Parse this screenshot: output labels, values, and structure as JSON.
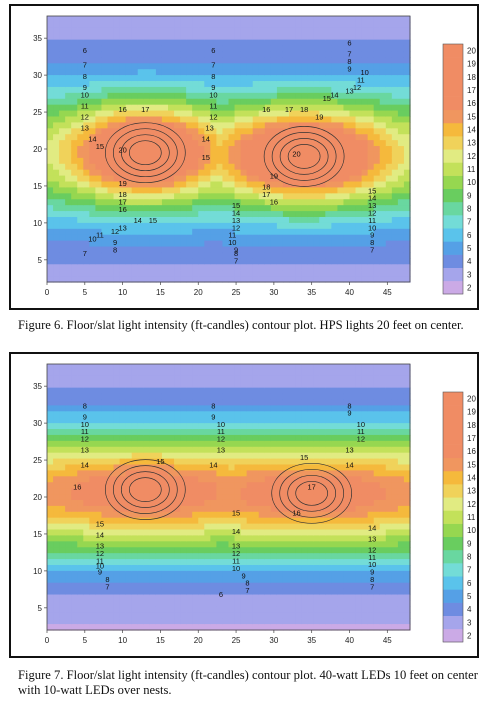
{
  "figures": [
    {
      "caption": "Figure 6.  Floor/slat light intensity (ft-candles) contour plot.  HPS lights 20 feet on center.",
      "chart_data": {
        "type": "heatmap",
        "title": "",
        "xlabel": "",
        "ylabel": "",
        "xlim": [
          0,
          48
        ],
        "ylim": [
          2,
          38
        ],
        "xticks": [
          0,
          5,
          10,
          15,
          20,
          25,
          30,
          35,
          40,
          45
        ],
        "yticks": [
          5,
          10,
          15,
          20,
          25,
          30,
          35
        ],
        "colorbar_ticks": [
          2,
          3,
          4,
          5,
          6,
          7,
          8,
          9,
          10,
          11,
          12,
          13,
          14,
          15,
          16,
          17,
          18,
          19,
          20
        ],
        "value_range": [
          2,
          20
        ],
        "peaks": [
          {
            "x": 13,
            "y": 19.5,
            "value": 20
          },
          {
            "x": 34,
            "y": 19,
            "value": 20
          }
        ],
        "contour_labels": [
          {
            "x": 5,
            "y": 33,
            "text": "6"
          },
          {
            "x": 5,
            "y": 31,
            "text": "7"
          },
          {
            "x": 5,
            "y": 29.5,
            "text": "8"
          },
          {
            "x": 5,
            "y": 28,
            "text": "9"
          },
          {
            "x": 5,
            "y": 27,
            "text": "10"
          },
          {
            "x": 5,
            "y": 25.5,
            "text": "11"
          },
          {
            "x": 5,
            "y": 24,
            "text": "12"
          },
          {
            "x": 5,
            "y": 22.5,
            "text": "13"
          },
          {
            "x": 6,
            "y": 21,
            "text": "14"
          },
          {
            "x": 7,
            "y": 20,
            "text": "15"
          },
          {
            "x": 10,
            "y": 25,
            "text": "16"
          },
          {
            "x": 13,
            "y": 25,
            "text": "17"
          },
          {
            "x": 10,
            "y": 19.5,
            "text": "20"
          },
          {
            "x": 10,
            "y": 15,
            "text": "19"
          },
          {
            "x": 10,
            "y": 13.5,
            "text": "18"
          },
          {
            "x": 10,
            "y": 12.5,
            "text": "17"
          },
          {
            "x": 10,
            "y": 11.5,
            "text": "16"
          },
          {
            "x": 12,
            "y": 10,
            "text": "14"
          },
          {
            "x": 14,
            "y": 10,
            "text": "15"
          },
          {
            "x": 10,
            "y": 9,
            "text": "13"
          },
          {
            "x": 9,
            "y": 8.5,
            "text": "12"
          },
          {
            "x": 7,
            "y": 8,
            "text": "11"
          },
          {
            "x": 6,
            "y": 7.5,
            "text": "10"
          },
          {
            "x": 9,
            "y": 7,
            "text": "9"
          },
          {
            "x": 9,
            "y": 6,
            "text": "8"
          },
          {
            "x": 5,
            "y": 5.5,
            "text": "7"
          },
          {
            "x": 22,
            "y": 33,
            "text": "6"
          },
          {
            "x": 22,
            "y": 31,
            "text": "7"
          },
          {
            "x": 22,
            "y": 29.5,
            "text": "8"
          },
          {
            "x": 22,
            "y": 28,
            "text": "9"
          },
          {
            "x": 22,
            "y": 27,
            "text": "10"
          },
          {
            "x": 22,
            "y": 25.5,
            "text": "11"
          },
          {
            "x": 22,
            "y": 24,
            "text": "12"
          },
          {
            "x": 21.5,
            "y": 22.5,
            "text": "13"
          },
          {
            "x": 21,
            "y": 21,
            "text": "14"
          },
          {
            "x": 21,
            "y": 18.5,
            "text": "15"
          },
          {
            "x": 25,
            "y": 12,
            "text": "15"
          },
          {
            "x": 25,
            "y": 11,
            "text": "14"
          },
          {
            "x": 25,
            "y": 10,
            "text": "13"
          },
          {
            "x": 25,
            "y": 9,
            "text": "12"
          },
          {
            "x": 24.5,
            "y": 8,
            "text": "11"
          },
          {
            "x": 24.5,
            "y": 7,
            "text": "10"
          },
          {
            "x": 25,
            "y": 6,
            "text": "9"
          },
          {
            "x": 25,
            "y": 5.5,
            "text": "8"
          },
          {
            "x": 25,
            "y": 4.5,
            "text": "7"
          },
          {
            "x": 29,
            "y": 25,
            "text": "16"
          },
          {
            "x": 32,
            "y": 25,
            "text": "17"
          },
          {
            "x": 34,
            "y": 25,
            "text": "18"
          },
          {
            "x": 36,
            "y": 24,
            "text": "19"
          },
          {
            "x": 33,
            "y": 19,
            "text": "20"
          },
          {
            "x": 30,
            "y": 16,
            "text": "19"
          },
          {
            "x": 29,
            "y": 14.5,
            "text": "18"
          },
          {
            "x": 29,
            "y": 13.5,
            "text": "17"
          },
          {
            "x": 30,
            "y": 12.5,
            "text": "16"
          },
          {
            "x": 37,
            "y": 26.5,
            "text": "15"
          },
          {
            "x": 38,
            "y": 27,
            "text": "14"
          },
          {
            "x": 40,
            "y": 27.5,
            "text": "13"
          },
          {
            "x": 41,
            "y": 28,
            "text": "12"
          },
          {
            "x": 41.5,
            "y": 29,
            "text": "11"
          },
          {
            "x": 42,
            "y": 30,
            "text": "10"
          },
          {
            "x": 40,
            "y": 30.5,
            "text": "9"
          },
          {
            "x": 40,
            "y": 31.5,
            "text": "8"
          },
          {
            "x": 40,
            "y": 32.5,
            "text": "7"
          },
          {
            "x": 40,
            "y": 34,
            "text": "6"
          },
          {
            "x": 43,
            "y": 14,
            "text": "15"
          },
          {
            "x": 43,
            "y": 13,
            "text": "14"
          },
          {
            "x": 43,
            "y": 12,
            "text": "13"
          },
          {
            "x": 43,
            "y": 11,
            "text": "12"
          },
          {
            "x": 43,
            "y": 10,
            "text": "11"
          },
          {
            "x": 43,
            "y": 9,
            "text": "10"
          },
          {
            "x": 43,
            "y": 8,
            "text": "9"
          },
          {
            "x": 43,
            "y": 7,
            "text": "8"
          },
          {
            "x": 43,
            "y": 6,
            "text": "7"
          }
        ]
      }
    },
    {
      "caption": "Figure 7.  Floor/slat light intensity (ft-candles) contour plot.  40-watt LEDs 10 feet on center with 10-watt LEDs over nests.",
      "chart_data": {
        "type": "heatmap",
        "title": "",
        "xlabel": "",
        "ylabel": "",
        "xlim": [
          0,
          48
        ],
        "ylim": [
          2,
          38
        ],
        "xticks": [
          0,
          5,
          10,
          15,
          20,
          25,
          30,
          35,
          40,
          45
        ],
        "yticks": [
          5,
          10,
          15,
          20,
          25,
          30,
          35
        ],
        "colorbar_ticks": [
          2,
          3,
          4,
          5,
          6,
          7,
          8,
          9,
          10,
          11,
          12,
          13,
          14,
          15,
          16,
          17,
          18,
          19,
          20
        ],
        "value_range": [
          2,
          20
        ],
        "peaks": [
          {
            "x": 13,
            "y": 21,
            "value": 16.5
          },
          {
            "x": 35,
            "y": 20.5,
            "value": 17
          }
        ],
        "contour_labels": [
          {
            "x": 5,
            "y": 32,
            "text": "8"
          },
          {
            "x": 5,
            "y": 30.5,
            "text": "9"
          },
          {
            "x": 5,
            "y": 29.5,
            "text": "10"
          },
          {
            "x": 5,
            "y": 28.5,
            "text": "11"
          },
          {
            "x": 5,
            "y": 27.5,
            "text": "12"
          },
          {
            "x": 5,
            "y": 26,
            "text": "13"
          },
          {
            "x": 5,
            "y": 24,
            "text": "14"
          },
          {
            "x": 15,
            "y": 24.5,
            "text": "15"
          },
          {
            "x": 4,
            "y": 21,
            "text": "16"
          },
          {
            "x": 7,
            "y": 16,
            "text": "15"
          },
          {
            "x": 7,
            "y": 14.5,
            "text": "14"
          },
          {
            "x": 7,
            "y": 13,
            "text": "13"
          },
          {
            "x": 7,
            "y": 12,
            "text": "12"
          },
          {
            "x": 7,
            "y": 11,
            "text": "11"
          },
          {
            "x": 7,
            "y": 10.3,
            "text": "10"
          },
          {
            "x": 7,
            "y": 9.5,
            "text": "9"
          },
          {
            "x": 8,
            "y": 8.5,
            "text": "8"
          },
          {
            "x": 8,
            "y": 7.5,
            "text": "7"
          },
          {
            "x": 22,
            "y": 32,
            "text": "8"
          },
          {
            "x": 22,
            "y": 30.5,
            "text": "9"
          },
          {
            "x": 23,
            "y": 29.5,
            "text": "10"
          },
          {
            "x": 23,
            "y": 28.5,
            "text": "11"
          },
          {
            "x": 23,
            "y": 27.5,
            "text": "12"
          },
          {
            "x": 23,
            "y": 26,
            "text": "13"
          },
          {
            "x": 22,
            "y": 24,
            "text": "14"
          },
          {
            "x": 25,
            "y": 15,
            "text": "14"
          },
          {
            "x": 25,
            "y": 13,
            "text": "13"
          },
          {
            "x": 25,
            "y": 12,
            "text": "12"
          },
          {
            "x": 25,
            "y": 11,
            "text": "11"
          },
          {
            "x": 25,
            "y": 10,
            "text": "10"
          },
          {
            "x": 26,
            "y": 9,
            "text": "9"
          },
          {
            "x": 26.5,
            "y": 8,
            "text": "8"
          },
          {
            "x": 26.5,
            "y": 7,
            "text": "7"
          },
          {
            "x": 23,
            "y": 6.5,
            "text": "6"
          },
          {
            "x": 25,
            "y": 17.5,
            "text": "15"
          },
          {
            "x": 34,
            "y": 25,
            "text": "15"
          },
          {
            "x": 35,
            "y": 21,
            "text": "17"
          },
          {
            "x": 33,
            "y": 17.5,
            "text": "16"
          },
          {
            "x": 40,
            "y": 32,
            "text": "8"
          },
          {
            "x": 40,
            "y": 31,
            "text": "9"
          },
          {
            "x": 41.5,
            "y": 29.5,
            "text": "10"
          },
          {
            "x": 41.5,
            "y": 28.5,
            "text": "11"
          },
          {
            "x": 41.5,
            "y": 27.5,
            "text": "12"
          },
          {
            "x": 40,
            "y": 26,
            "text": "13"
          },
          {
            "x": 40,
            "y": 24,
            "text": "14"
          },
          {
            "x": 43,
            "y": 15.5,
            "text": "14"
          },
          {
            "x": 43,
            "y": 14,
            "text": "13"
          },
          {
            "x": 43,
            "y": 12.5,
            "text": "12"
          },
          {
            "x": 43,
            "y": 11.5,
            "text": "11"
          },
          {
            "x": 43,
            "y": 10.5,
            "text": "10"
          },
          {
            "x": 43,
            "y": 9.5,
            "text": "9"
          },
          {
            "x": 43,
            "y": 8.5,
            "text": "8"
          },
          {
            "x": 43,
            "y": 7.5,
            "text": "7"
          }
        ]
      }
    }
  ]
}
